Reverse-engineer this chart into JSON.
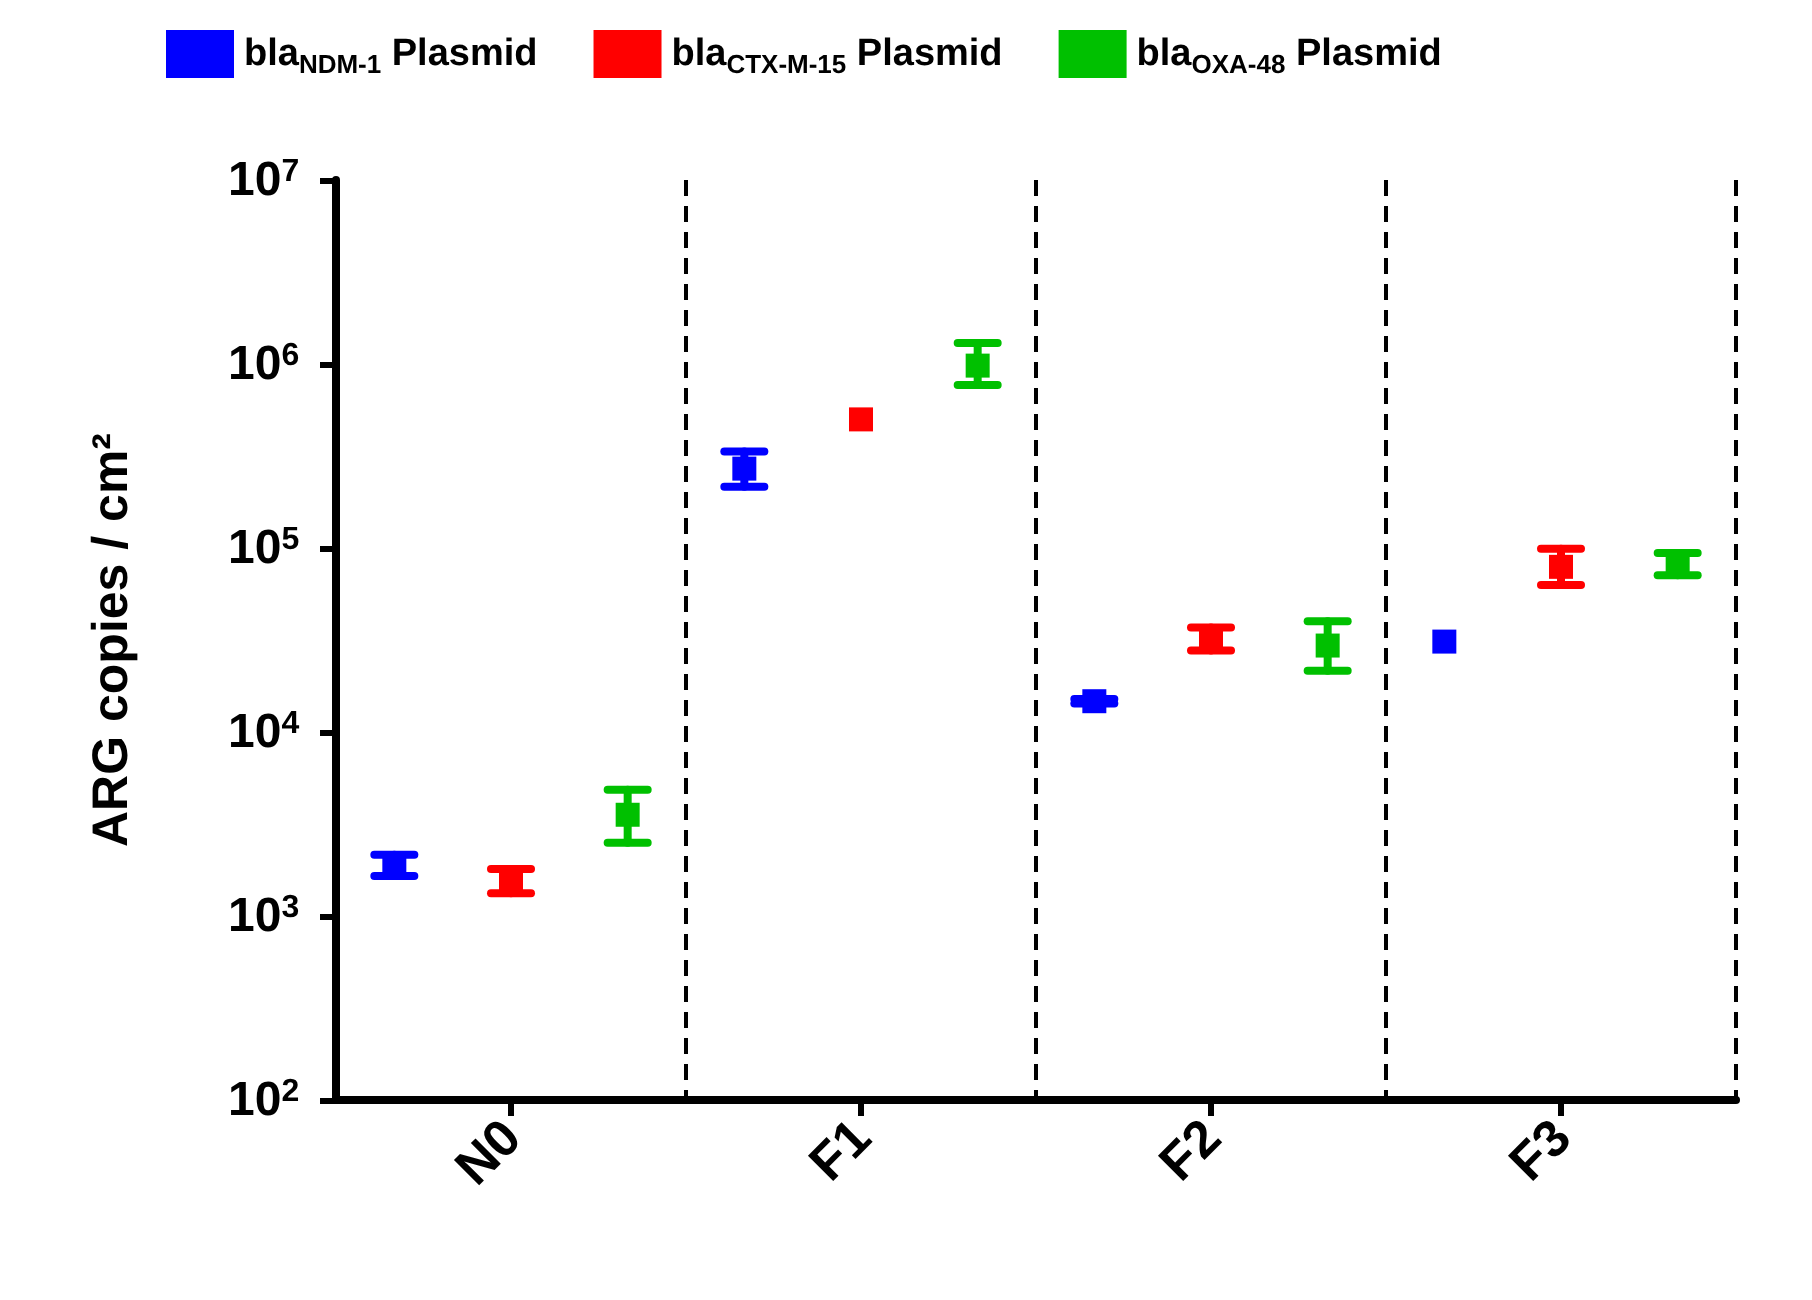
{
  "chart_data": {
    "type": "scatter",
    "ylabel": "ARG copies / cm²",
    "categories": [
      null,
      "N0",
      null,
      null,
      "F1",
      null,
      null,
      "F2",
      null,
      null,
      "F3",
      null
    ],
    "series": [
      {
        "name": "bla$_{NDM-1}$ Plasmid",
        "color": "#0000ff",
        "values": [
          1900,
          null,
          null,
          270000,
          null,
          null,
          14700,
          null,
          null,
          31000,
          null,
          null
        ],
        "errors": [
          [
            1650,
            2150
          ],
          null,
          null,
          [
            215000,
            335000
          ],
          null,
          null,
          [
            14300,
            15100
          ],
          null,
          null,
          null,
          null,
          null
        ]
      },
      {
        "name": "bla$_{CTX-M-15}$ Plasmid",
        "color": "#ff0000",
        "values": [
          null,
          1580,
          null,
          null,
          500000,
          null,
          null,
          32000,
          null,
          null,
          79000,
          null
        ],
        "errors": [
          null,
          [
            1330,
            1800
          ],
          null,
          null,
          null,
          null,
          null,
          [
            27700,
            37000
          ],
          null,
          null,
          [
            63000,
            99000
          ],
          null
        ]
      },
      {
        "name": "bla$_{OXA-48}$ Plasmid",
        "color": "#00c000",
        "values": [
          null,
          null,
          3550,
          null,
          null,
          980000,
          null,
          null,
          29500,
          null,
          null,
          81000
        ],
        "errors": [
          null,
          null,
          [
            2500,
            4850
          ],
          null,
          null,
          [
            770000,
            1300000
          ],
          null,
          null,
          [
            21500,
            40000
          ],
          null,
          null,
          [
            71000,
            94000
          ]
        ]
      }
    ],
    "log": "y",
    "ylim": [
      100,
      10000000
    ],
    "yticks": [
      {
        "value": 100,
        "label": "10$^{2}$"
      },
      {
        "value": 1000,
        "label": "10$^{3}$"
      },
      {
        "value": 10000,
        "label": "10$^{4}$"
      },
      {
        "value": 100000,
        "label": "10$^{5}$"
      },
      {
        "value": 1000000,
        "label": "10$^{6}$"
      },
      {
        "value": 10000000,
        "label": "10$^{7}$"
      }
    ],
    "grid": "x",
    "marker": "square",
    "legend": "top"
  }
}
